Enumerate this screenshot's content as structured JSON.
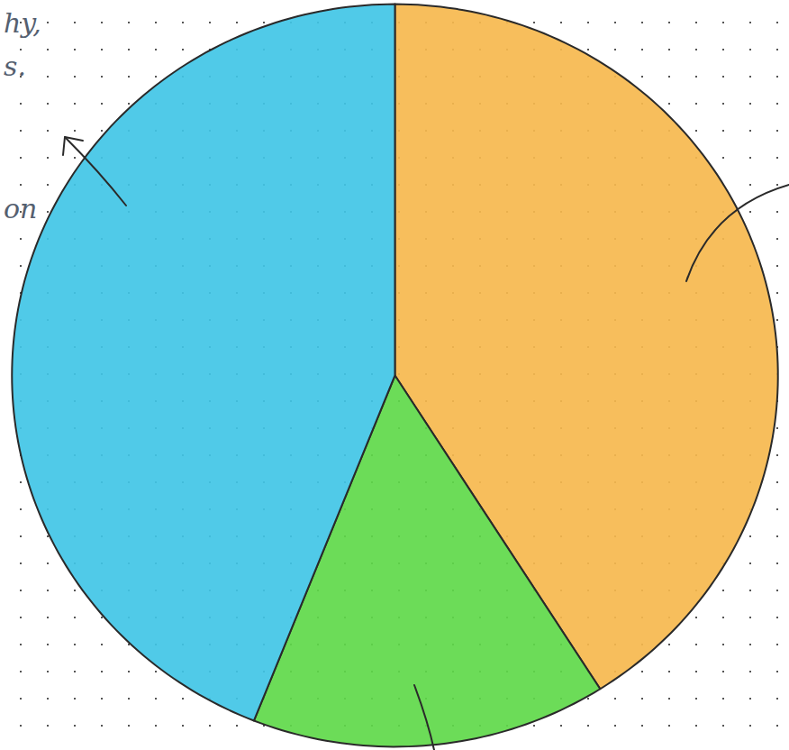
{
  "chart_data": {
    "type": "pie",
    "categories": [
      null,
      null,
      null
    ],
    "values": [
      41,
      15,
      44
    ],
    "colors": [
      "#f6b94e",
      "#5fd94a",
      "#41c6e6"
    ],
    "annotations": [
      "hy,",
      "s.",
      "on"
    ],
    "data_labels": false,
    "legend": false
  }
}
